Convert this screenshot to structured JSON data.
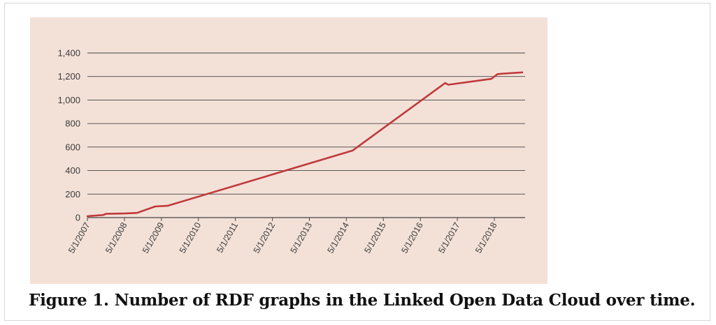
{
  "caption": "Figure 1. Number of RDF graphs in the Linked Open Data Cloud over time.",
  "colors": {
    "panel_background": "#f3e1d8",
    "series_line": "#c0393b",
    "gridline": "#444444"
  },
  "chart_data": {
    "type": "line",
    "title": "",
    "xlabel": "",
    "ylabel": "",
    "ylim": [
      0,
      1400
    ],
    "y_ticks": [
      "0",
      "200",
      "400",
      "600",
      "800",
      "1,000",
      "1,200",
      "1,400"
    ],
    "y_tick_values": [
      0,
      200,
      400,
      600,
      800,
      1000,
      1200,
      1400
    ],
    "x_ticks": [
      "5/1/2007",
      "5/1/2008",
      "5/1/2009",
      "5/1/2010",
      "5/1/2011",
      "5/1/2012",
      "5/1/2013",
      "5/1/2014",
      "5/1/2015",
      "5/1/2016",
      "5/1/2017",
      "5/1/2018"
    ],
    "x_tick_values": [
      "2007-05-01",
      "2008-05-01",
      "2009-05-01",
      "2010-05-01",
      "2011-05-01",
      "2012-05-01",
      "2013-05-01",
      "2014-05-01",
      "2015-05-01",
      "2016-05-01",
      "2017-05-01",
      "2018-05-01"
    ],
    "xlim": [
      "2007-05-01",
      "2019-03-01"
    ],
    "grid": true,
    "legend": "none",
    "series": [
      {
        "x": [
          "2007-05-01",
          "2007-10-01",
          "2007-11-01",
          "2008-05-01",
          "2008-09-01",
          "2009-03-01",
          "2009-07-01",
          "2014-07-01",
          "2017-01-01",
          "2017-02-01",
          "2018-04-01",
          "2018-06-01",
          "2018-08-01",
          "2019-02-01"
        ],
        "y": [
          12,
          22,
          32,
          35,
          40,
          95,
          100,
          570,
          1145,
          1130,
          1180,
          1220,
          1225,
          1235
        ]
      }
    ]
  }
}
